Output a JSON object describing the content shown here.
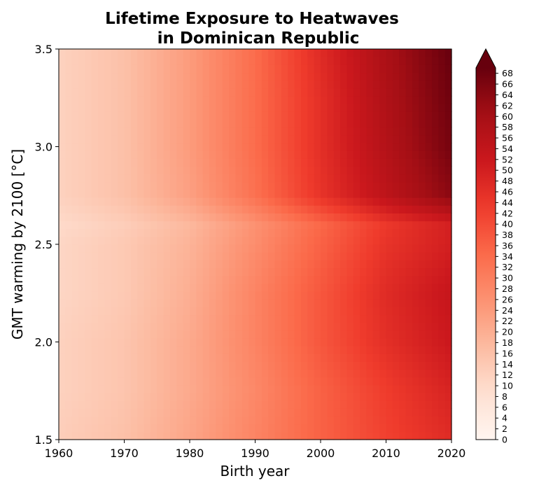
{
  "chart_data": {
    "type": "heatmap",
    "title_line1": "Lifetime Exposure to Heatwaves",
    "title_line2": "in Dominican Republic",
    "xlabel": "Birth year",
    "ylabel": "GMT warming by 2100 [°C]",
    "xlim": [
      1960,
      2020
    ],
    "ylim": [
      1.5,
      3.5
    ],
    "x_ticks": [
      1960,
      1970,
      1980,
      1990,
      2000,
      2010,
      2020
    ],
    "x_tick_labels": [
      "1960",
      "1970",
      "1980",
      "1990",
      "2000",
      "2010",
      "2020"
    ],
    "y_ticks": [
      1.5,
      2.0,
      2.5,
      3.0,
      3.5
    ],
    "y_tick_labels": [
      "1.5",
      "2.0",
      "2.5",
      "3.0",
      "3.5"
    ],
    "colormap": "Reds",
    "colorbar": {
      "min": 0,
      "max": 69,
      "extend": "max",
      "ticks": [
        0,
        2,
        4,
        6,
        8,
        10,
        12,
        14,
        16,
        18,
        20,
        22,
        24,
        26,
        28,
        30,
        32,
        34,
        36,
        38,
        40,
        42,
        44,
        46,
        48,
        50,
        52,
        54,
        56,
        58,
        60,
        62,
        64,
        66,
        68
      ],
      "tick_labels": [
        "0",
        "2",
        "4",
        "6",
        "8",
        "10",
        "12",
        "14",
        "16",
        "18",
        "20",
        "22",
        "24",
        "26",
        "28",
        "30",
        "32",
        "34",
        "36",
        "38",
        "40",
        "42",
        "44",
        "46",
        "48",
        "50",
        "52",
        "54",
        "56",
        "58",
        "60",
        "62",
        "64",
        "66",
        "68"
      ]
    },
    "grid_x": [
      1960,
      1970,
      1980,
      1990,
      2000,
      2010,
      2020
    ],
    "grid_y": [
      1.5,
      1.75,
      2.0,
      2.25,
      2.5,
      2.6,
      2.75,
      3.0,
      3.25,
      3.5
    ],
    "values": [
      [
        13,
        16,
        22,
        29,
        36,
        42,
        47
      ],
      [
        12,
        15,
        21,
        28,
        36,
        43,
        49
      ],
      [
        12,
        15,
        21,
        29,
        38,
        46,
        52
      ],
      [
        11,
        14,
        20,
        29,
        38,
        47,
        53
      ],
      [
        11,
        14,
        19,
        27,
        36,
        45,
        50
      ],
      [
        10,
        13,
        18,
        26,
        35,
        44,
        50
      ],
      [
        12,
        16,
        23,
        33,
        45,
        55,
        64
      ],
      [
        12,
        16,
        24,
        34,
        46,
        57,
        67
      ],
      [
        12,
        16,
        24,
        34,
        46,
        58,
        68
      ],
      [
        12,
        16,
        24,
        34,
        47,
        59,
        69
      ]
    ]
  }
}
